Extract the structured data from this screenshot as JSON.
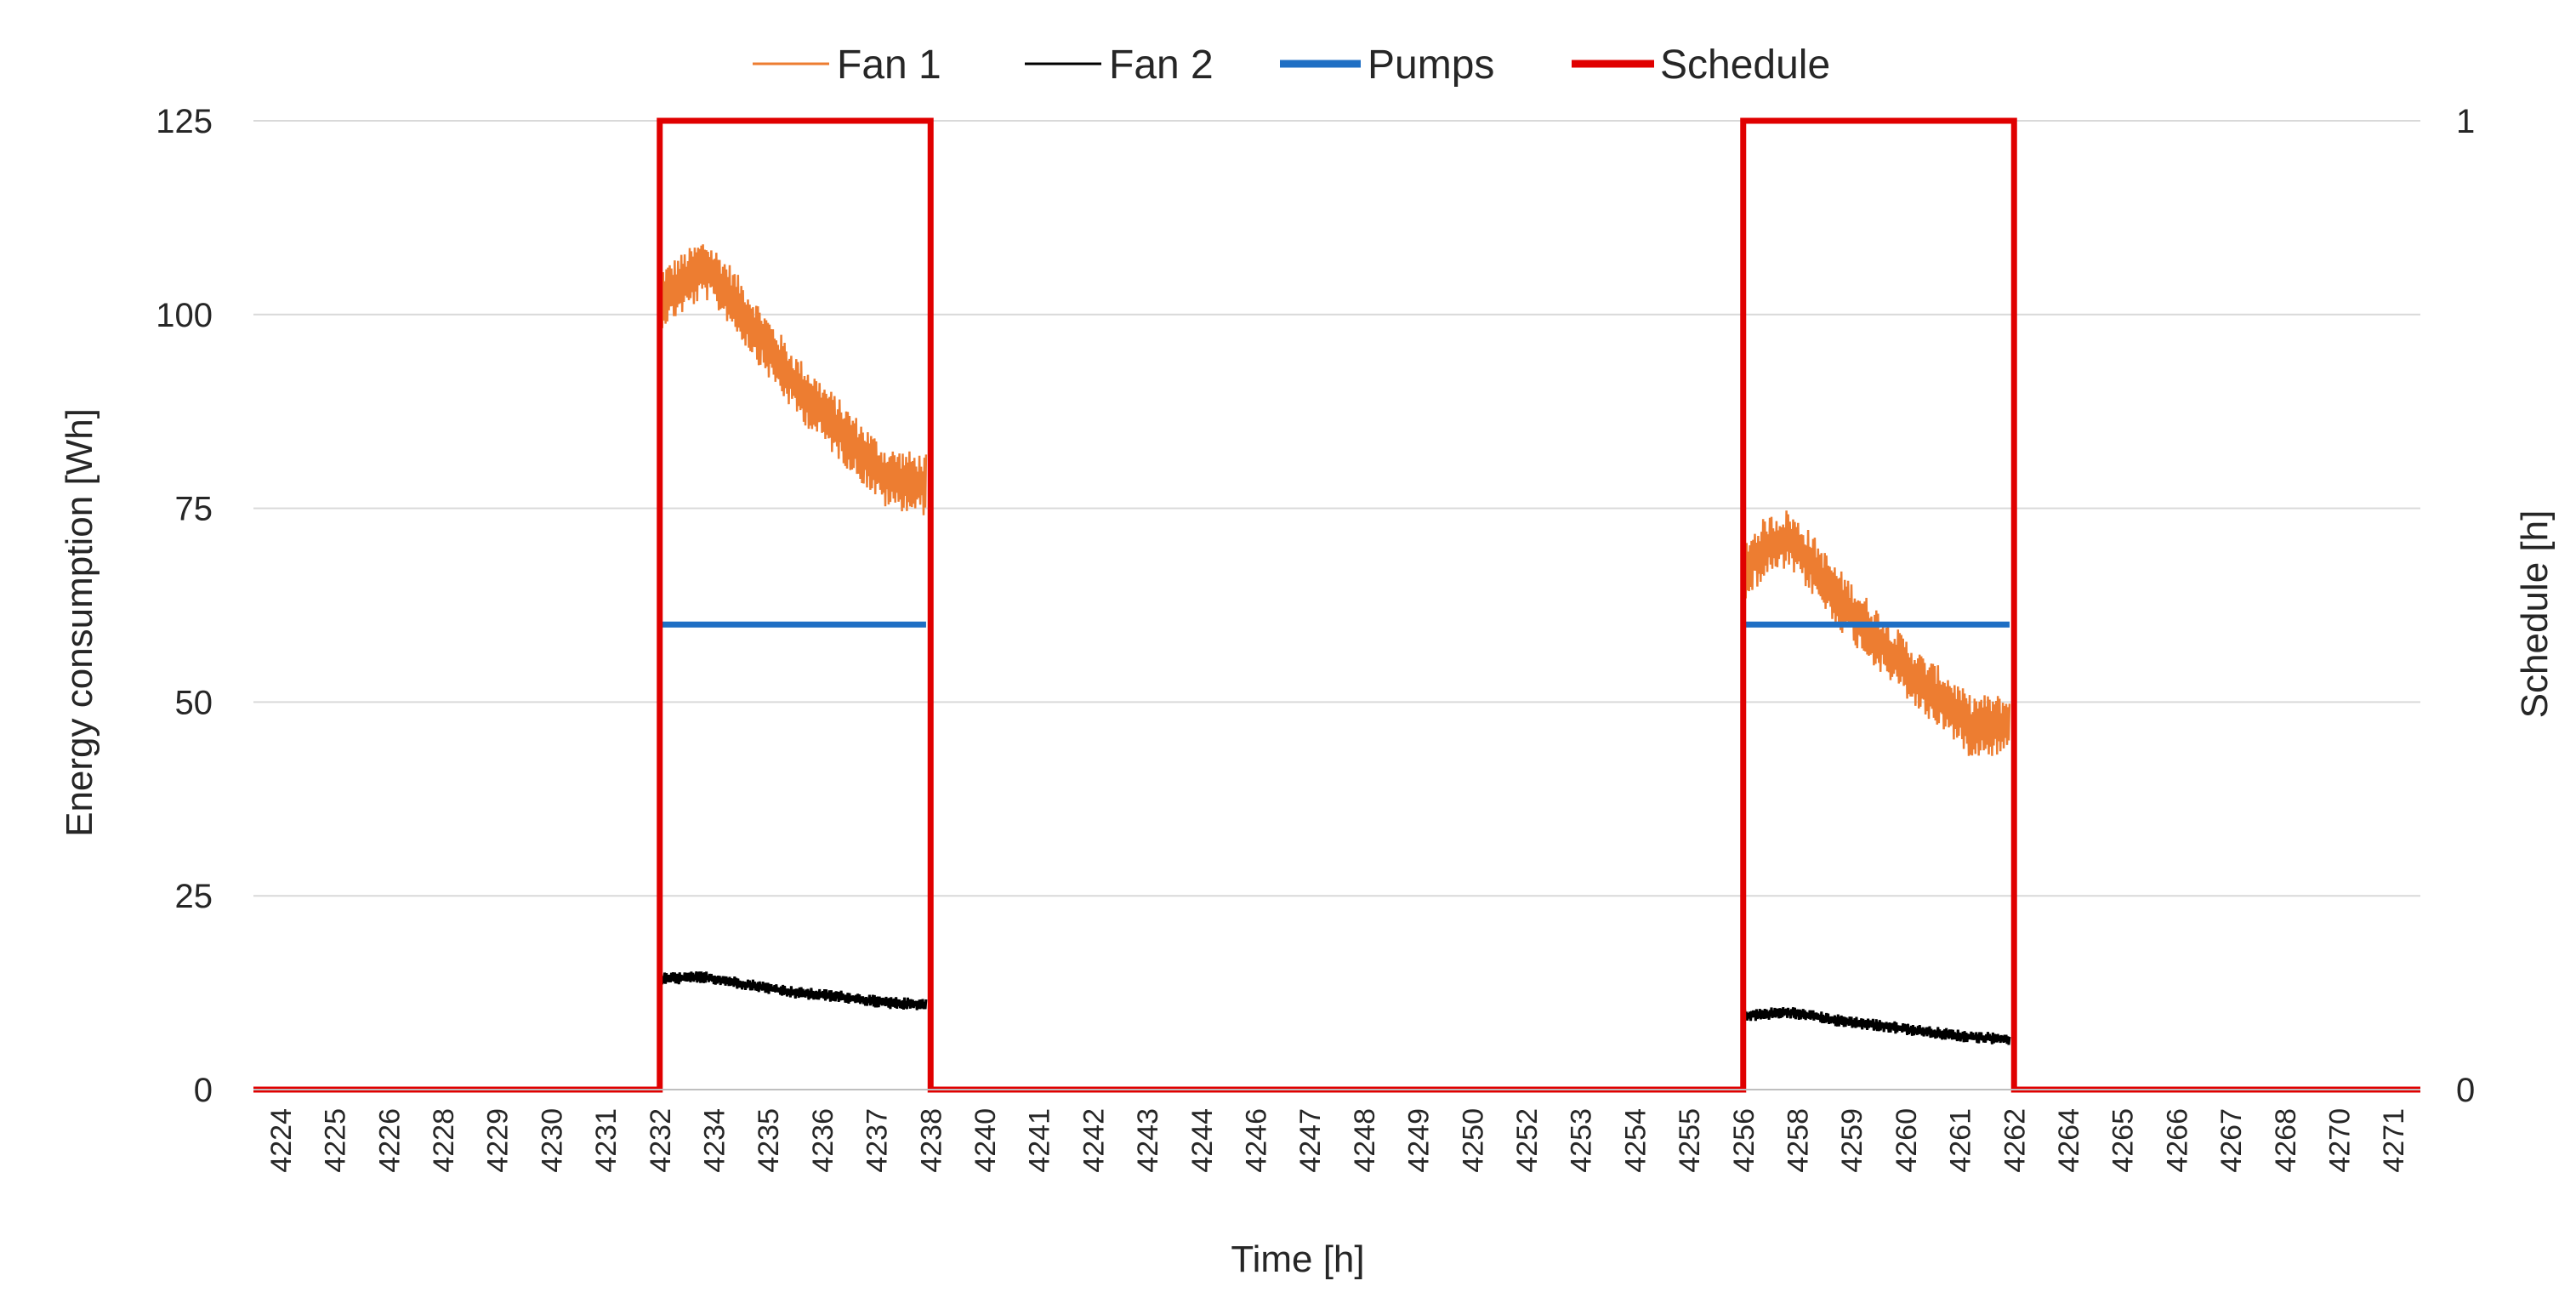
{
  "chart_data": {
    "type": "line",
    "title": "",
    "xlabel": "Time [h]",
    "ylabel": "Energy consumption [Wh]",
    "y2label": "Schedule [h]",
    "xlim": [
      4224,
      4272
    ],
    "ylim": [
      0,
      125
    ],
    "y2lim": [
      0,
      1
    ],
    "yticks": [
      0,
      25,
      50,
      75,
      100,
      125
    ],
    "y2ticks": [
      0,
      1
    ],
    "xtick_labels": [
      "4224",
      "4225",
      "4226",
      "4228",
      "4229",
      "4230",
      "4231",
      "4232",
      "4234",
      "4235",
      "4236",
      "4237",
      "4238",
      "4240",
      "4241",
      "4242",
      "4243",
      "4244",
      "4246",
      "4247",
      "4248",
      "4249",
      "4250",
      "4252",
      "4253",
      "4254",
      "4255",
      "4256",
      "4258",
      "4259",
      "4260",
      "4261",
      "4262",
      "4264",
      "4265",
      "4266",
      "4267",
      "4268",
      "4270",
      "4271"
    ],
    "grid": true,
    "legend_position": "top",
    "legend": [
      "Fan 1",
      "Fan 2",
      "Pumps",
      "Schedule"
    ],
    "series": [
      {
        "name": "Fan 1",
        "color": "#ED7D31",
        "axis": "left",
        "segments": [
          {
            "x": [
              4233.0,
              4233.5,
              4234.0,
              4234.5,
              4235.0,
              4235.5,
              4236.0,
              4236.5,
              4237.0,
              4237.5,
              4238.0,
              4238.9
            ],
            "y": [
              102,
              104,
              106,
              103,
              99,
              95,
              91,
              88,
              85,
              82,
              79,
              78
            ]
          },
          {
            "x": [
              4257.0,
              4257.5,
              4258.0,
              4258.5,
              4259.0,
              4259.5,
              4260.0,
              4260.5,
              4261.0,
              4261.5,
              4262.0,
              4262.9
            ],
            "y": [
              67,
              70,
              71,
              68,
              64,
              61,
              58,
              55,
              52,
              50,
              47,
              47
            ]
          }
        ],
        "noise_amplitude": 4
      },
      {
        "name": "Fan 2",
        "color": "#000000",
        "axis": "left",
        "segments": [
          {
            "x": [
              4233.0,
              4234.0,
              4235.0,
              4236.0,
              4237.0,
              4238.0,
              4238.9
            ],
            "y": [
              14.3,
              14.5,
              13.5,
              12.5,
              12.0,
              11.2,
              11.0
            ]
          },
          {
            "x": [
              4257.0,
              4258.0,
              4259.0,
              4260.0,
              4261.0,
              4262.0,
              4262.9
            ],
            "y": [
              9.5,
              10.0,
              9.0,
              8.3,
              7.5,
              6.8,
              6.5
            ]
          }
        ],
        "noise_amplitude": 0.8
      },
      {
        "name": "Pumps",
        "color": "#1F6FC4",
        "axis": "left",
        "segments": [
          {
            "x": [
              4233.0,
              4238.9
            ],
            "y": [
              60,
              60
            ]
          },
          {
            "x": [
              4257.0,
              4262.9
            ],
            "y": [
              60,
              60
            ]
          }
        ]
      },
      {
        "name": "Schedule",
        "color": "#E00000",
        "axis": "right",
        "x": [
          4224,
          4233,
          4233,
          4239,
          4239,
          4257,
          4257,
          4263,
          4263,
          4272
        ],
        "y": [
          0,
          0,
          1,
          1,
          0,
          0,
          1,
          1,
          0,
          0
        ]
      }
    ]
  }
}
